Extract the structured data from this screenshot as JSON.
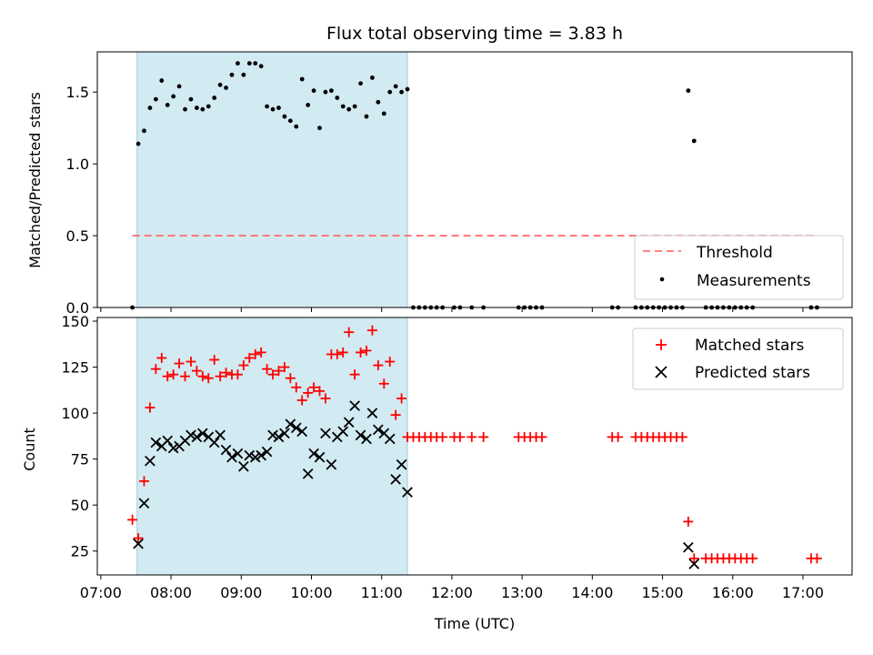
{
  "title": "Flux total observing time = 3.83 h",
  "chart_data": [
    {
      "type": "scatter",
      "ylabel": "Matched/Predicted stars",
      "ylim": [
        0,
        1.78
      ],
      "yticks": [
        0.0,
        0.5,
        1.0,
        1.5
      ],
      "ytick_labels": [
        "0.0",
        "0.5",
        "1.0",
        "1.5"
      ],
      "legend_position": "lower-right",
      "shaded_region": {
        "x": [
          "07:31",
          "11:22"
        ],
        "color": "#add8e6"
      },
      "threshold": {
        "name": "Threshold",
        "value": 0.5,
        "x": [
          "07:27",
          "17:12"
        ],
        "color": "#ff7070"
      },
      "series": [
        {
          "name": "Measurements",
          "color": "#000000",
          "x": [
            "07:27",
            "07:32",
            "07:37",
            "07:42",
            "07:47",
            "07:52",
            "07:57",
            "08:02",
            "08:07",
            "08:12",
            "08:17",
            "08:22",
            "08:27",
            "08:32",
            "08:37",
            "08:42",
            "08:47",
            "08:52",
            "08:57",
            "09:02",
            "09:07",
            "09:12",
            "09:17",
            "09:22",
            "09:27",
            "09:32",
            "09:37",
            "09:42",
            "09:47",
            "09:52",
            "09:57",
            "10:02",
            "10:07",
            "10:12",
            "10:17",
            "10:22",
            "10:27",
            "10:32",
            "10:37",
            "10:42",
            "10:47",
            "10:52",
            "10:57",
            "11:02",
            "11:07",
            "11:12",
            "11:17",
            "11:22",
            "11:27",
            "11:32",
            "11:37",
            "11:42",
            "11:47",
            "11:52",
            "12:02",
            "12:07",
            "12:17",
            "12:27",
            "12:57",
            "13:02",
            "13:07",
            "13:12",
            "13:17",
            "14:17",
            "14:22",
            "14:37",
            "14:42",
            "14:47",
            "14:52",
            "14:57",
            "15:02",
            "15:07",
            "15:12",
            "15:17",
            "15:22",
            "15:27",
            "15:37",
            "15:42",
            "15:47",
            "15:52",
            "15:57",
            "16:02",
            "16:07",
            "16:12",
            "16:17",
            "17:07",
            "17:12"
          ],
          "y": [
            0,
            1.14,
            1.23,
            1.39,
            1.45,
            1.58,
            1.41,
            1.47,
            1.54,
            1.38,
            1.45,
            1.39,
            1.38,
            1.4,
            1.46,
            1.55,
            1.53,
            1.62,
            1.7,
            1.62,
            1.7,
            1.7,
            1.68,
            1.4,
            1.38,
            1.39,
            1.33,
            1.3,
            1.26,
            1.59,
            1.41,
            1.51,
            1.25,
            1.5,
            1.51,
            1.46,
            1.4,
            1.38,
            1.4,
            1.56,
            1.33,
            1.6,
            1.43,
            1.35,
            1.5,
            1.54,
            1.5,
            1.52,
            0,
            0,
            0,
            0,
            0,
            0,
            0,
            0,
            0,
            0,
            0,
            0,
            0,
            0,
            0,
            0,
            0,
            0,
            0,
            0,
            0,
            0,
            0,
            0,
            0,
            0,
            1.51,
            1.16,
            0,
            0,
            0,
            0,
            0,
            0,
            0,
            0,
            0,
            0,
            0
          ]
        }
      ]
    },
    {
      "type": "scatter",
      "xlabel": "Time (UTC)",
      "ylabel": "Count",
      "ylim": [
        12,
        152
      ],
      "yticks": [
        25,
        50,
        75,
        100,
        125,
        150
      ],
      "ytick_labels": [
        "25",
        "50",
        "75",
        "100",
        "125",
        "150"
      ],
      "xlim": [
        "06:57",
        "17:42"
      ],
      "xticks": [
        "07:00",
        "08:00",
        "09:00",
        "10:00",
        "11:00",
        "12:00",
        "13:00",
        "14:00",
        "15:00",
        "16:00",
        "17:00"
      ],
      "legend_position": "upper-right",
      "shaded_region": {
        "x": [
          "07:31",
          "11:22"
        ],
        "color": "#add8e6"
      },
      "series": [
        {
          "name": "Matched stars",
          "marker": "+",
          "color": "#ff0000",
          "x": [
            "07:27",
            "07:32",
            "07:37",
            "07:42",
            "07:47",
            "07:52",
            "07:57",
            "08:02",
            "08:07",
            "08:12",
            "08:17",
            "08:22",
            "08:27",
            "08:32",
            "08:37",
            "08:42",
            "08:47",
            "08:52",
            "08:57",
            "09:02",
            "09:07",
            "09:12",
            "09:17",
            "09:22",
            "09:27",
            "09:32",
            "09:37",
            "09:42",
            "09:47",
            "09:52",
            "09:57",
            "10:02",
            "10:07",
            "10:12",
            "10:17",
            "10:22",
            "10:27",
            "10:32",
            "10:37",
            "10:42",
            "10:47",
            "10:52",
            "10:57",
            "11:02",
            "11:07",
            "11:12",
            "11:17",
            "11:22",
            "11:27",
            "11:32",
            "11:37",
            "11:42",
            "11:47",
            "11:52",
            "12:02",
            "12:07",
            "12:17",
            "12:27",
            "12:57",
            "13:02",
            "13:07",
            "13:12",
            "13:17",
            "14:17",
            "14:22",
            "14:37",
            "14:42",
            "14:47",
            "14:52",
            "14:57",
            "15:02",
            "15:07",
            "15:12",
            "15:17",
            "15:22",
            "15:27",
            "15:37",
            "15:42",
            "15:47",
            "15:52",
            "15:57",
            "16:02",
            "16:07",
            "16:12",
            "16:17",
            "17:07",
            "17:12"
          ],
          "y": [
            42,
            32,
            63,
            103,
            124,
            130,
            120,
            121,
            127,
            120,
            128,
            123,
            120,
            119,
            129,
            120,
            122,
            121,
            121,
            126,
            130,
            132,
            133,
            124,
            121,
            123,
            125,
            119,
            114,
            107,
            111,
            114,
            112,
            108,
            132,
            132,
            133,
            144,
            121,
            133,
            134,
            145,
            126,
            116,
            128,
            99,
            108,
            87,
            87,
            87,
            87,
            87,
            87,
            87,
            87,
            87,
            87,
            87,
            87,
            87,
            87,
            87,
            87,
            87,
            87,
            87,
            87,
            87,
            87,
            87,
            87,
            87,
            87,
            87,
            41,
            21,
            21,
            21,
            21,
            21,
            21,
            21,
            21,
            21,
            21,
            21,
            21
          ]
        },
        {
          "name": "Predicted stars",
          "marker": "x",
          "color": "#000000",
          "x": [
            "07:32",
            "07:37",
            "07:42",
            "07:47",
            "07:52",
            "07:57",
            "08:02",
            "08:07",
            "08:12",
            "08:17",
            "08:22",
            "08:27",
            "08:32",
            "08:37",
            "08:42",
            "08:47",
            "08:52",
            "08:57",
            "09:02",
            "09:07",
            "09:12",
            "09:17",
            "09:22",
            "09:27",
            "09:32",
            "09:37",
            "09:42",
            "09:47",
            "09:52",
            "09:57",
            "10:02",
            "10:07",
            "10:12",
            "10:17",
            "10:22",
            "10:27",
            "10:32",
            "10:37",
            "10:42",
            "10:47",
            "10:52",
            "10:57",
            "11:02",
            "11:07",
            "11:12",
            "11:17",
            "11:22",
            "15:22",
            "15:27"
          ],
          "y": [
            29,
            51,
            74,
            84,
            82,
            85,
            81,
            82,
            85,
            88,
            87,
            89,
            87,
            84,
            88,
            80,
            76,
            78,
            71,
            77,
            76,
            77,
            79,
            88,
            87,
            89,
            94,
            92,
            90,
            67,
            78,
            76,
            89,
            72,
            87,
            90,
            95,
            104,
            88,
            86,
            100,
            91,
            89,
            86,
            64,
            72,
            57,
            27,
            18
          ]
        }
      ]
    }
  ]
}
